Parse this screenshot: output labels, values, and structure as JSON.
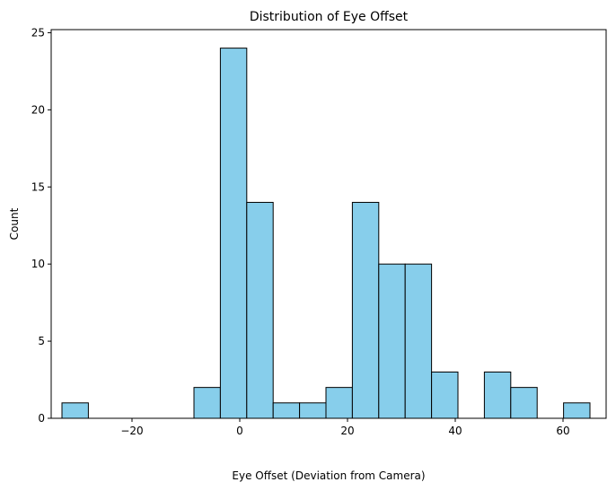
{
  "chart_data": {
    "type": "bar",
    "title": "Distribution of Eye Offset",
    "xlabel": "Eye Offset (Deviation from Camera)",
    "ylabel": "Count",
    "bar_color": "#87ceeb",
    "edge_color": "#000000",
    "xlim": [
      -35.0,
      68.0
    ],
    "ylim": [
      0,
      25.2
    ],
    "grid": false,
    "xticks": [
      -20,
      0,
      20,
      40,
      60
    ],
    "xtick_labels": [
      "−20",
      "0",
      "20",
      "40",
      "60"
    ],
    "yticks": [
      0,
      5,
      10,
      15,
      20,
      25
    ],
    "ytick_labels": [
      "0",
      "5",
      "10",
      "15",
      "20",
      "25"
    ],
    "bins": [
      {
        "x0": -33.0,
        "x1": -28.1,
        "count": 1
      },
      {
        "x0": -28.1,
        "x1": -23.2,
        "count": 0
      },
      {
        "x0": -23.2,
        "x1": -18.3,
        "count": 0
      },
      {
        "x0": -18.3,
        "x1": -13.4,
        "count": 0
      },
      {
        "x0": -13.4,
        "x1": -8.5,
        "count": 0
      },
      {
        "x0": -8.5,
        "x1": -3.6,
        "count": 2
      },
      {
        "x0": -3.6,
        "x1": 1.3,
        "count": 24
      },
      {
        "x0": 1.3,
        "x1": 6.2,
        "count": 14
      },
      {
        "x0": 6.2,
        "x1": 11.1,
        "count": 1
      },
      {
        "x0": 11.1,
        "x1": 16.0,
        "count": 1
      },
      {
        "x0": 16.0,
        "x1": 20.9,
        "count": 2
      },
      {
        "x0": 20.9,
        "x1": 25.8,
        "count": 14
      },
      {
        "x0": 25.8,
        "x1": 30.7,
        "count": 10
      },
      {
        "x0": 30.7,
        "x1": 35.6,
        "count": 10
      },
      {
        "x0": 35.6,
        "x1": 40.5,
        "count": 3
      },
      {
        "x0": 40.5,
        "x1": 45.4,
        "count": 0
      },
      {
        "x0": 45.4,
        "x1": 50.3,
        "count": 3
      },
      {
        "x0": 50.3,
        "x1": 55.2,
        "count": 2
      },
      {
        "x0": 55.2,
        "x1": 60.1,
        "count": 0
      },
      {
        "x0": 60.1,
        "x1": 65.0,
        "count": 1
      }
    ]
  }
}
